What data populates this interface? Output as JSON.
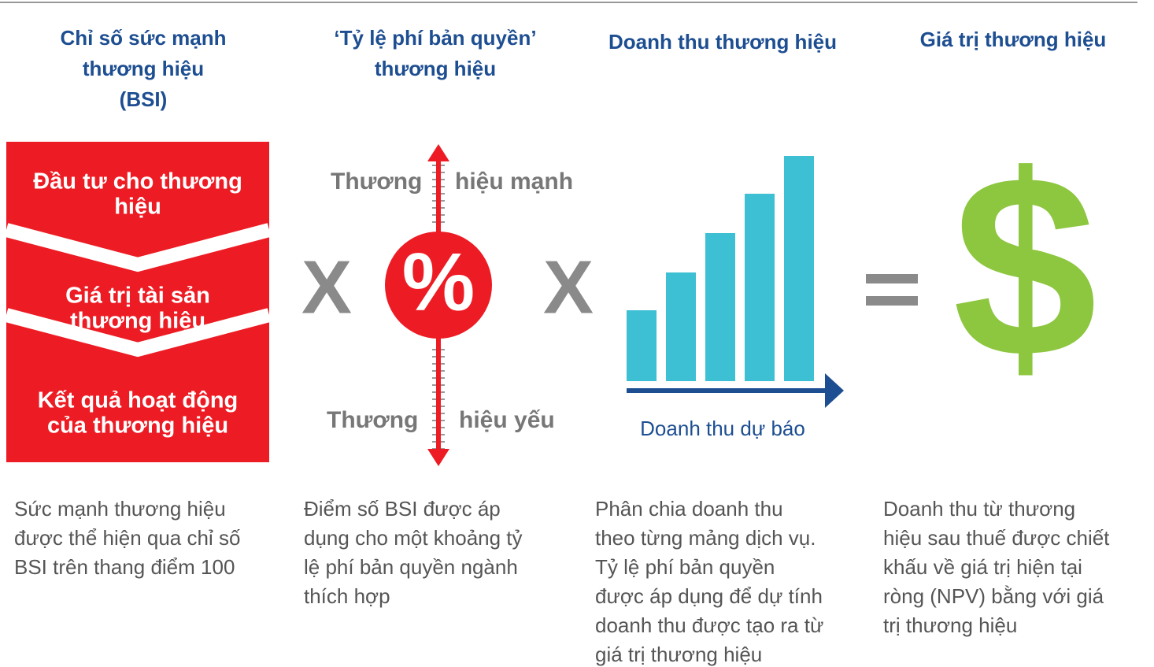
{
  "columns": [
    {
      "title": [
        "Chỉ số sức mạnh",
        "thương hiệu",
        "(BSI)"
      ],
      "description": [
        "Sức mạnh thương hiệu",
        "được thể hiện qua chỉ số",
        "BSI trên thang điểm 100"
      ]
    },
    {
      "title": [
        "‘Tỷ lệ phí bản quyền’",
        "thương hiệu"
      ],
      "description": [
        "Điểm số BSI được áp",
        "dụng cho một khoảng tỷ",
        "lệ phí bản quyền ngành",
        "thích hợp"
      ]
    },
    {
      "title": [
        "Doanh thu thương hiệu"
      ],
      "description": [
        "Phân chia doanh thu",
        "theo từng mảng dịch vụ.",
        "Tỷ lệ phí bản quyền",
        "được áp dụng để dự tính",
        "doanh thu được tạo ra từ",
        "giá trị thương hiệu"
      ]
    },
    {
      "title": [
        "Giá trị thương hiệu"
      ],
      "description": [
        "Doanh thu từ thương",
        "hiệu sau thuế được chiết",
        "khấu về giá trị hiện tại",
        "ròng (NPV) bằng với giá",
        "trị thương hiệu"
      ]
    }
  ],
  "bsi_box": [
    [
      "Đầu tư cho thương",
      "hiệu"
    ],
    [
      "Giá trị tài sản",
      "thương hiệu"
    ],
    [
      "Kết quả hoạt động",
      "của thương hiệu"
    ]
  ],
  "scale": {
    "top": [
      "Thương",
      "hiệu mạnh"
    ],
    "bottom": [
      "Thương",
      "hiệu yếu"
    ],
    "symbol": "%"
  },
  "operators": [
    "X",
    "X",
    "="
  ],
  "revenue_axis_label": "Doanh thu dự báo",
  "value_symbol": "$"
}
